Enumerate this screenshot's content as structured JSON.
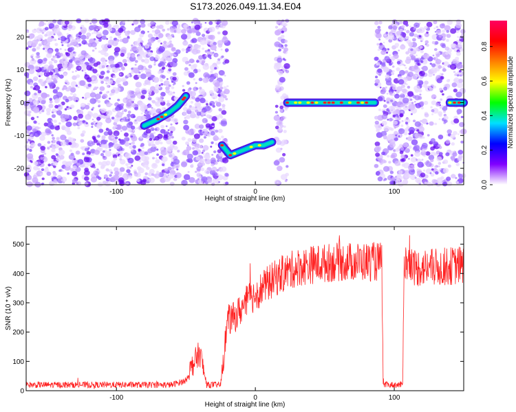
{
  "title": "S173.2026.049.11.34.E04",
  "chart_data": [
    {
      "type": "heatmap",
      "xlabel": "Height of straight line (km)",
      "ylabel": "Frequency (Hz)",
      "xlim": [
        -165,
        150
      ],
      "ylim": [
        -25,
        25
      ],
      "xticks": [
        -100,
        0,
        100
      ],
      "xtick_labels": [
        "-100",
        "0",
        "100"
      ],
      "yticks": [
        -20,
        -10,
        0,
        10,
        20
      ],
      "ytick_labels": [
        "-20",
        "-10",
        "0",
        "10",
        "20"
      ],
      "colorbar": {
        "label": "Normalized spectral amplitude",
        "range": [
          0,
          0.95
        ],
        "ticks": [
          0,
          0.2,
          0.4,
          0.6,
          0.8
        ],
        "tick_labels": [
          "0.0",
          "0.2",
          "0.4",
          "0.6",
          "0.8"
        ],
        "colors": [
          "#ffffff",
          "#8000ff",
          "#0000ff",
          "#00e0ff",
          "#00ff00",
          "#ffff00",
          "#ff8000",
          "#ff0000",
          "#ff0060"
        ]
      },
      "noise_regions_km": [
        [
          -165,
          -55
        ],
        [
          -52,
          -22
        ],
        [
          -22,
          -20
        ],
        [
          15,
          23
        ],
        [
          87,
          140
        ],
        [
          142,
          150
        ]
      ],
      "signal_tracks": [
        {
          "name": "rising arc",
          "x": [
            -80,
            -70,
            -62,
            -56,
            -52,
            -50
          ],
          "y": [
            -7,
            -5,
            -3,
            -1,
            1,
            2
          ]
        },
        {
          "name": "low arc",
          "x": [
            -24,
            -18,
            -12,
            -6,
            0,
            6,
            12
          ],
          "y": [
            -13,
            -16,
            -15,
            -14,
            -13,
            -13,
            -12
          ]
        },
        {
          "name": "zero line",
          "x": [
            23,
            86
          ],
          "y": [
            0,
            0
          ]
        },
        {
          "name": "right stub",
          "x": [
            140,
            150
          ],
          "y": [
            0,
            0
          ]
        }
      ]
    },
    {
      "type": "line",
      "xlabel": "Height of straight line (km)",
      "ylabel": "SNR (10 * v/v)",
      "xlim": [
        -165,
        150
      ],
      "ylim": [
        0,
        560
      ],
      "xticks": [
        -100,
        0,
        100
      ],
      "xtick_labels": [
        "-100",
        "0",
        "100"
      ],
      "yticks": [
        0,
        100,
        200,
        300,
        400,
        500
      ],
      "ytick_labels": [
        "0",
        "100",
        "200",
        "300",
        "400",
        "500"
      ],
      "line_color": "#ff2020",
      "x": [
        -165,
        -60,
        -50,
        -45,
        -40,
        -35,
        -30,
        -25,
        -20,
        -15,
        -10,
        -5,
        0,
        10,
        20,
        30,
        40,
        60,
        80,
        91,
        92,
        106,
        107,
        115,
        130,
        150
      ],
      "y": [
        20,
        20,
        35,
        90,
        130,
        20,
        20,
        20,
        240,
        250,
        280,
        310,
        330,
        370,
        400,
        420,
        430,
        440,
        440,
        440,
        20,
        20,
        440,
        420,
        420,
        430
      ]
    }
  ]
}
